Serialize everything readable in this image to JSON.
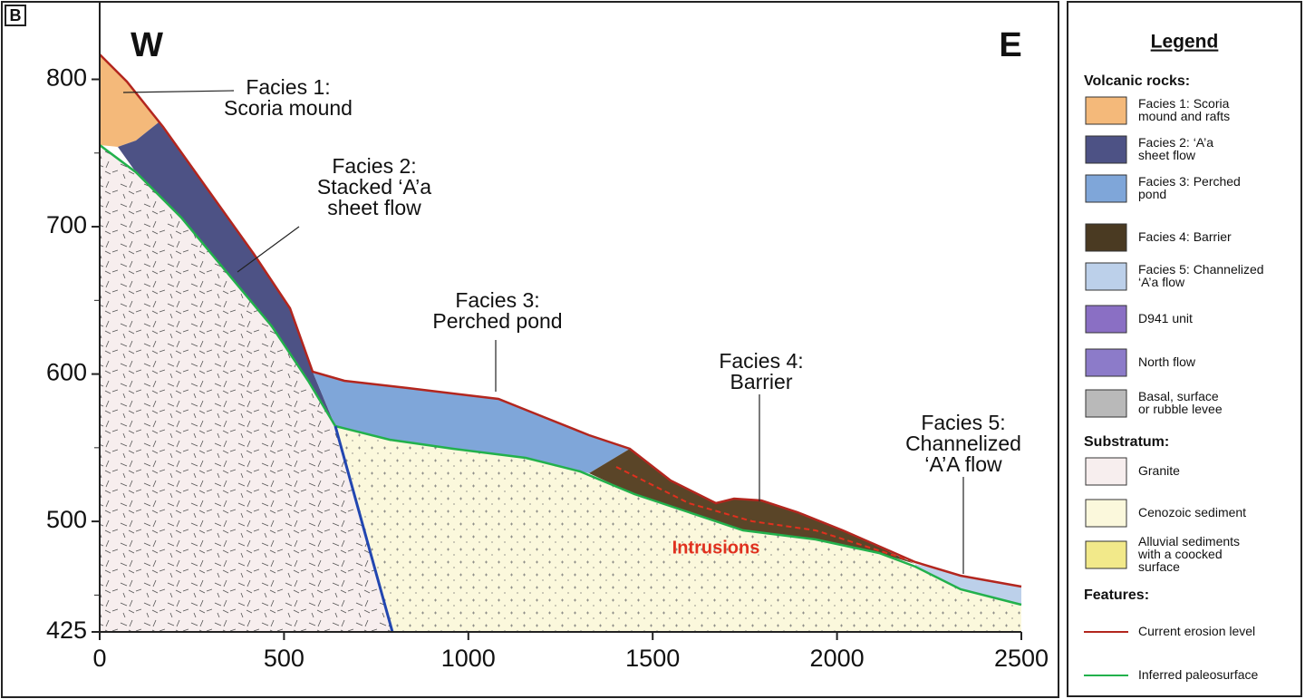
{
  "panel_label": "B",
  "west": "W",
  "east": "E",
  "axes": {
    "xlim": [
      0,
      2500
    ],
    "xticks": [
      0,
      500,
      1000,
      1500,
      2000,
      2500
    ],
    "ylim": [
      425,
      852
    ],
    "yticks": [
      425,
      500,
      600,
      700,
      800
    ]
  },
  "annotations": [
    {
      "lines": [
        "Facies 1:",
        "Scoria mound"
      ]
    },
    {
      "lines": [
        "Facies 2:",
        "Stacked ‘A’a",
        "sheet flow"
      ]
    },
    {
      "lines": [
        "Facies 3:",
        "Perched pond"
      ]
    },
    {
      "lines": [
        "Facies 4:",
        "Barrier"
      ]
    },
    {
      "lines": [
        "Facies 5:",
        "Channelized",
        "‘A’A flow"
      ]
    },
    {
      "lines": [
        "Intrusions"
      ]
    }
  ],
  "legend": {
    "title": "Legend",
    "groups": [
      {
        "heading": "Volcanic rocks:",
        "items": [
          {
            "lines": [
              "Facies 1: Scoria",
              "mound and rafts"
            ],
            "color": "#f4b97a"
          },
          {
            "lines": [
              "Facies 2: ‘A’a",
              "sheet flow"
            ],
            "color": "#4d5285"
          },
          {
            "lines": [
              "Facies 3: Perched",
              "pond"
            ],
            "color": "#7fa6d9"
          },
          {
            "lines": [
              "Facies 4: Barrier"
            ],
            "color": "#4a3a22"
          },
          {
            "lines": [
              "Facies 5: Channelized",
              "‘A’a flow"
            ],
            "color": "#bcd0ea"
          },
          {
            "lines": [
              "D941 unit"
            ],
            "color": "#8a6fc4"
          },
          {
            "lines": [
              "North flow"
            ],
            "color": "#8c7bc9"
          },
          {
            "lines": [
              "Basal, surface",
              "or rubble levee"
            ],
            "color": "#b9b9b9"
          }
        ]
      },
      {
        "heading": "Substratum:",
        "items": [
          {
            "lines": [
              "Granite"
            ],
            "color": "#f7eeee"
          },
          {
            "lines": [
              "Cenozoic sediment"
            ],
            "color": "#fbf8dc"
          },
          {
            "lines": [
              "Alluvial sediments",
              "with a coocked",
              "surface"
            ],
            "color": "#f2e98a"
          }
        ]
      },
      {
        "heading": "Features:",
        "items": [
          {
            "lines": [
              "Current erosion level"
            ],
            "color": "#b3261e",
            "kind": "line"
          },
          {
            "lines": [
              "Inferred paleosurface"
            ],
            "color": "#22b14c",
            "kind": "line"
          }
        ]
      }
    ]
  }
}
